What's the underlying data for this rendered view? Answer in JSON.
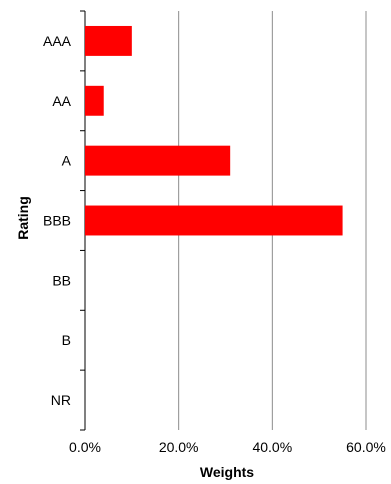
{
  "chart_data": {
    "type": "bar",
    "orientation": "horizontal",
    "categories": [
      "AAA",
      "AA",
      "A",
      "BBB",
      "BB",
      "B",
      "NR"
    ],
    "values": [
      10.0,
      4.0,
      31.0,
      55.0,
      0,
      0,
      0
    ],
    "value_unit": "%",
    "xlim": [
      0,
      60
    ],
    "xticks": [
      "0.0%",
      "20.0%",
      "40.0%",
      "60.0%"
    ],
    "xlabel": "Weights",
    "ylabel": "Rating",
    "bar_color": "#ff0000",
    "gridlines": "vertical",
    "legend": "none"
  }
}
